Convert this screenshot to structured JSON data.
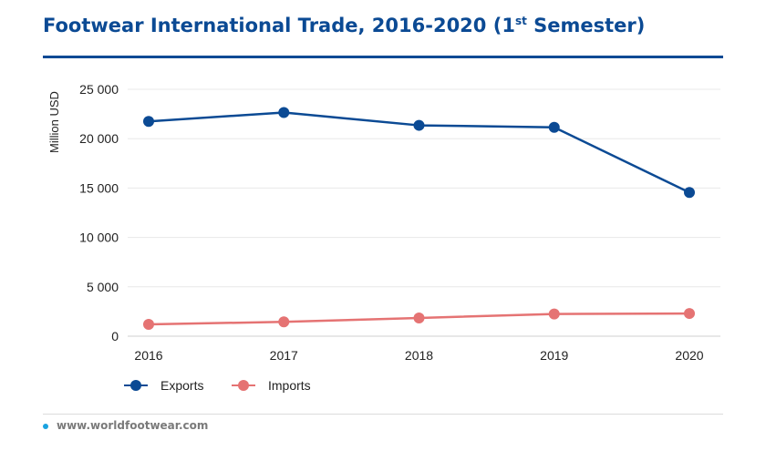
{
  "title": {
    "main": "Footwear International Trade, 2016-2020 (1",
    "sup": "st",
    "end": " Semester)"
  },
  "colors": {
    "title": "#0b4a94",
    "exports": "#0b4a94",
    "imports": "#e57373",
    "grid": "#e8e8e8",
    "footer_dot": "#1aa3e0"
  },
  "footer": {
    "url": "www.worldfootwear.com"
  },
  "chart_data": {
    "type": "line",
    "x": [
      "2016",
      "2017",
      "2018",
      "2019",
      "2020"
    ],
    "ylabel": "Million USD",
    "xlabel": "",
    "ylim": [
      0,
      25000
    ],
    "yticks": [
      0,
      5000,
      10000,
      15000,
      20000,
      25000
    ],
    "ytick_labels": [
      "0",
      "5 000",
      "10 000",
      "15 000",
      "20 000",
      "25 000"
    ],
    "grid": true,
    "legend": "bottom-left",
    "series": [
      {
        "name": "Exports",
        "color": "#0b4a94",
        "values": [
          21750,
          22650,
          21350,
          21150,
          14550
        ]
      },
      {
        "name": "Imports",
        "color": "#e57373",
        "values": [
          1200,
          1450,
          1850,
          2250,
          2300
        ]
      }
    ]
  }
}
